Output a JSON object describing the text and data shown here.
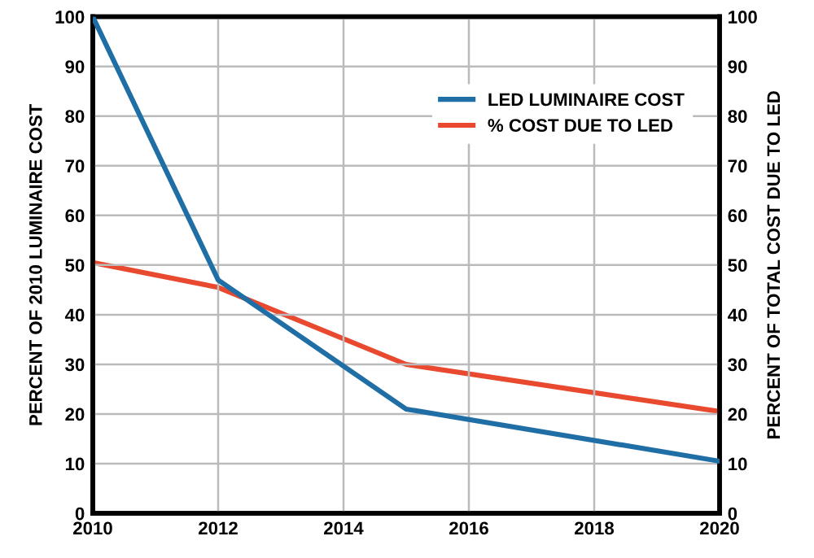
{
  "chart_data": {
    "type": "line",
    "xlabel": null,
    "ylabel": "PERCENT OF 2010 LUMINAIRE COST",
    "y2label": "PERCENT OF TOTAL COST DUE TO LED",
    "x": [
      2010,
      2012,
      2015,
      2020
    ],
    "series": [
      {
        "name": "LED LUMINAIRE COST",
        "color": "#1f6fa6",
        "values": [
          100,
          47,
          21,
          10.5
        ]
      },
      {
        "name": "% COST DUE TO LED",
        "color": "#e8492f",
        "values": [
          50.5,
          45.5,
          30,
          20.5
        ],
        "axis": "y2"
      }
    ],
    "xlim": [
      2010,
      2020
    ],
    "xticks": [
      2010,
      2012,
      2014,
      2016,
      2018,
      2020
    ],
    "ylim": [
      0,
      100
    ],
    "yticks": [
      0,
      10,
      20,
      30,
      40,
      50,
      60,
      70,
      80,
      90,
      100
    ],
    "y2lim": [
      0,
      100
    ],
    "y2ticks": [
      0,
      10,
      20,
      30,
      40,
      50,
      60,
      70,
      80,
      90,
      100
    ],
    "grid": true,
    "legend": "top right",
    "marker": "none",
    "line_style": "solid"
  }
}
